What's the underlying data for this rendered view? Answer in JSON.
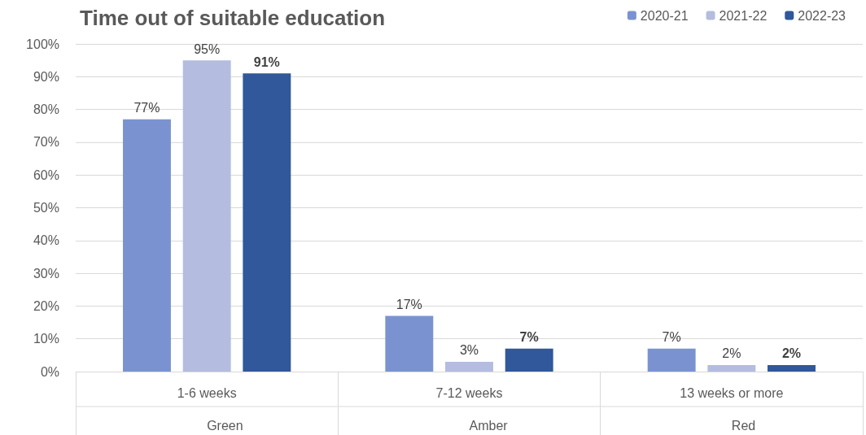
{
  "chart_data": {
    "type": "bar",
    "title": "Time out of suitable education",
    "categories": [
      "1-6 weeks",
      "7-12 weeks",
      "13 weeks or more"
    ],
    "annotations": [
      "Green",
      "Amber",
      "Red"
    ],
    "series": [
      {
        "name": "2020-21",
        "color": "#7a93d0",
        "values": [
          77,
          17,
          7
        ],
        "value_labels": [
          "77%",
          "17%",
          "7%"
        ]
      },
      {
        "name": "2021-22",
        "color": "#b4bde0",
        "values": [
          95,
          3,
          2
        ],
        "value_labels": [
          "95%",
          "3%",
          "2%"
        ]
      },
      {
        "name": "2022-23",
        "color": "#30589a",
        "values": [
          91,
          7,
          2
        ],
        "value_labels": [
          "91%",
          "7%",
          "2%"
        ]
      }
    ],
    "ylim": [
      0,
      100
    ],
    "yticks": [
      {
        "value": 0,
        "label": "0%"
      },
      {
        "value": 10,
        "label": "10%"
      },
      {
        "value": 20,
        "label": "20%"
      },
      {
        "value": 30,
        "label": "30%"
      },
      {
        "value": 40,
        "label": "40%"
      },
      {
        "value": 50,
        "label": "50%"
      },
      {
        "value": 60,
        "label": "60%"
      },
      {
        "value": 70,
        "label": "70%"
      },
      {
        "value": 80,
        "label": "80%"
      },
      {
        "value": 90,
        "label": "90%"
      },
      {
        "value": 100,
        "label": "100%"
      }
    ],
    "grid": "y",
    "legend": "top right"
  }
}
